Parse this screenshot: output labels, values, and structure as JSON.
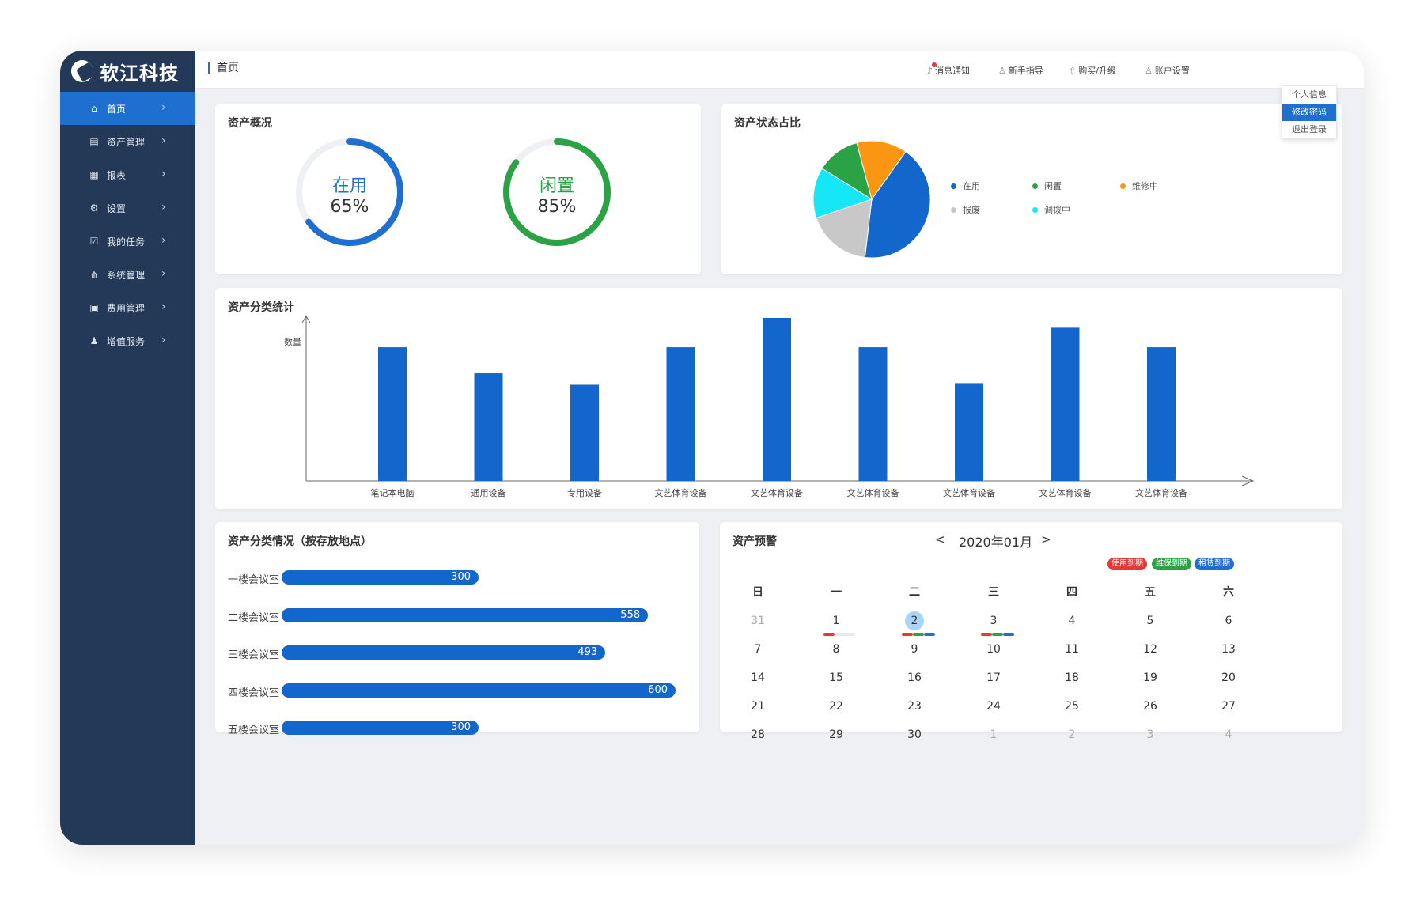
{
  "brand": {
    "name": "软江科技"
  },
  "breadcrumb": "首页",
  "header_actions": [
    {
      "label": "消息通知",
      "icon": "bell-icon"
    },
    {
      "label": "新手指导",
      "icon": "user-icon"
    },
    {
      "label": "购买/升级",
      "icon": "upgrade-icon"
    },
    {
      "label": "账户设置",
      "icon": "account-icon"
    }
  ],
  "account_menu": [
    "个人信息",
    "修改密码",
    "退出登录"
  ],
  "sidebar": [
    {
      "label": "首页",
      "icon": "home-icon",
      "active": true
    },
    {
      "label": "资产管理",
      "icon": "asset-icon"
    },
    {
      "label": "报表",
      "icon": "report-icon"
    },
    {
      "label": "设置",
      "icon": "gear-icon"
    },
    {
      "label": "我的任务",
      "icon": "task-icon"
    },
    {
      "label": "系统管理",
      "icon": "sitemap-icon"
    },
    {
      "label": "费用管理",
      "icon": "fee-icon"
    },
    {
      "label": "增值服务",
      "icon": "service-icon"
    }
  ],
  "overview": {
    "title": "资产概况",
    "rings": [
      {
        "label": "在用",
        "value": "65%",
        "fraction": 0.65,
        "color": "#1f6fd1"
      },
      {
        "label": "闲置",
        "value": "85%",
        "fraction": 0.85,
        "color": "#2ba245"
      }
    ]
  },
  "status_pie": {
    "title": "资产状态占比",
    "legend": [
      {
        "label": "在用",
        "color": "#1366cc"
      },
      {
        "label": "闲置",
        "color": "#2ba245"
      },
      {
        "label": "维修中",
        "color": "#fb9612"
      },
      {
        "label": "报废",
        "color": "#c8c8c8"
      },
      {
        "label": "调拨中",
        "color": "#16e6f5"
      }
    ]
  },
  "chart_data": [
    {
      "type": "pie",
      "categories": [
        "在用",
        "报废",
        "调拨中",
        "闲置",
        "维修中"
      ],
      "values": [
        42,
        18,
        14,
        12,
        14
      ]
    },
    {
      "type": "bar",
      "title": "资产分类统计",
      "ylabel": "数量",
      "categories": [
        "笔记本电脑",
        "通用设备",
        "专用设备",
        "文艺体育设备",
        "文艺体育设备",
        "文艺体育设备",
        "文艺体育设备",
        "文艺体育设备",
        "文艺体育设备"
      ],
      "values": [
        82,
        66,
        59,
        82,
        100,
        82,
        60,
        94,
        82
      ],
      "ylim": [
        0,
        100
      ]
    },
    {
      "type": "bar",
      "title": "资产分类情况（按存放地点）",
      "orientation": "horizontal",
      "categories": [
        "一楼会议室",
        "二楼会议室",
        "三楼会议室",
        "四楼会议室",
        "五楼会议室"
      ],
      "values": [
        300,
        558,
        493,
        600,
        300
      ]
    }
  ],
  "calendar": {
    "title": "资产预警",
    "month": "2020年01月",
    "prev": "<",
    "next": ">",
    "tags": [
      {
        "label": "使用到期",
        "color": "#e53935"
      },
      {
        "label": "维保到期",
        "color": "#2ba245"
      },
      {
        "label": "租赁到期",
        "color": "#1f6fd1"
      }
    ],
    "weekdays": [
      "日",
      "一",
      "二",
      "三",
      "四",
      "五",
      "六"
    ],
    "weeks": [
      [
        "31",
        "1",
        "2",
        "3",
        "4",
        "5",
        "6"
      ],
      [
        "7",
        "8",
        "9",
        "10",
        "11",
        "12",
        "13"
      ],
      [
        "14",
        "15",
        "16",
        "17",
        "18",
        "19",
        "20"
      ],
      [
        "21",
        "22",
        "23",
        "24",
        "25",
        "26",
        "27"
      ],
      [
        "28",
        "29",
        "30",
        "1",
        "2",
        "3",
        "4"
      ]
    ]
  }
}
